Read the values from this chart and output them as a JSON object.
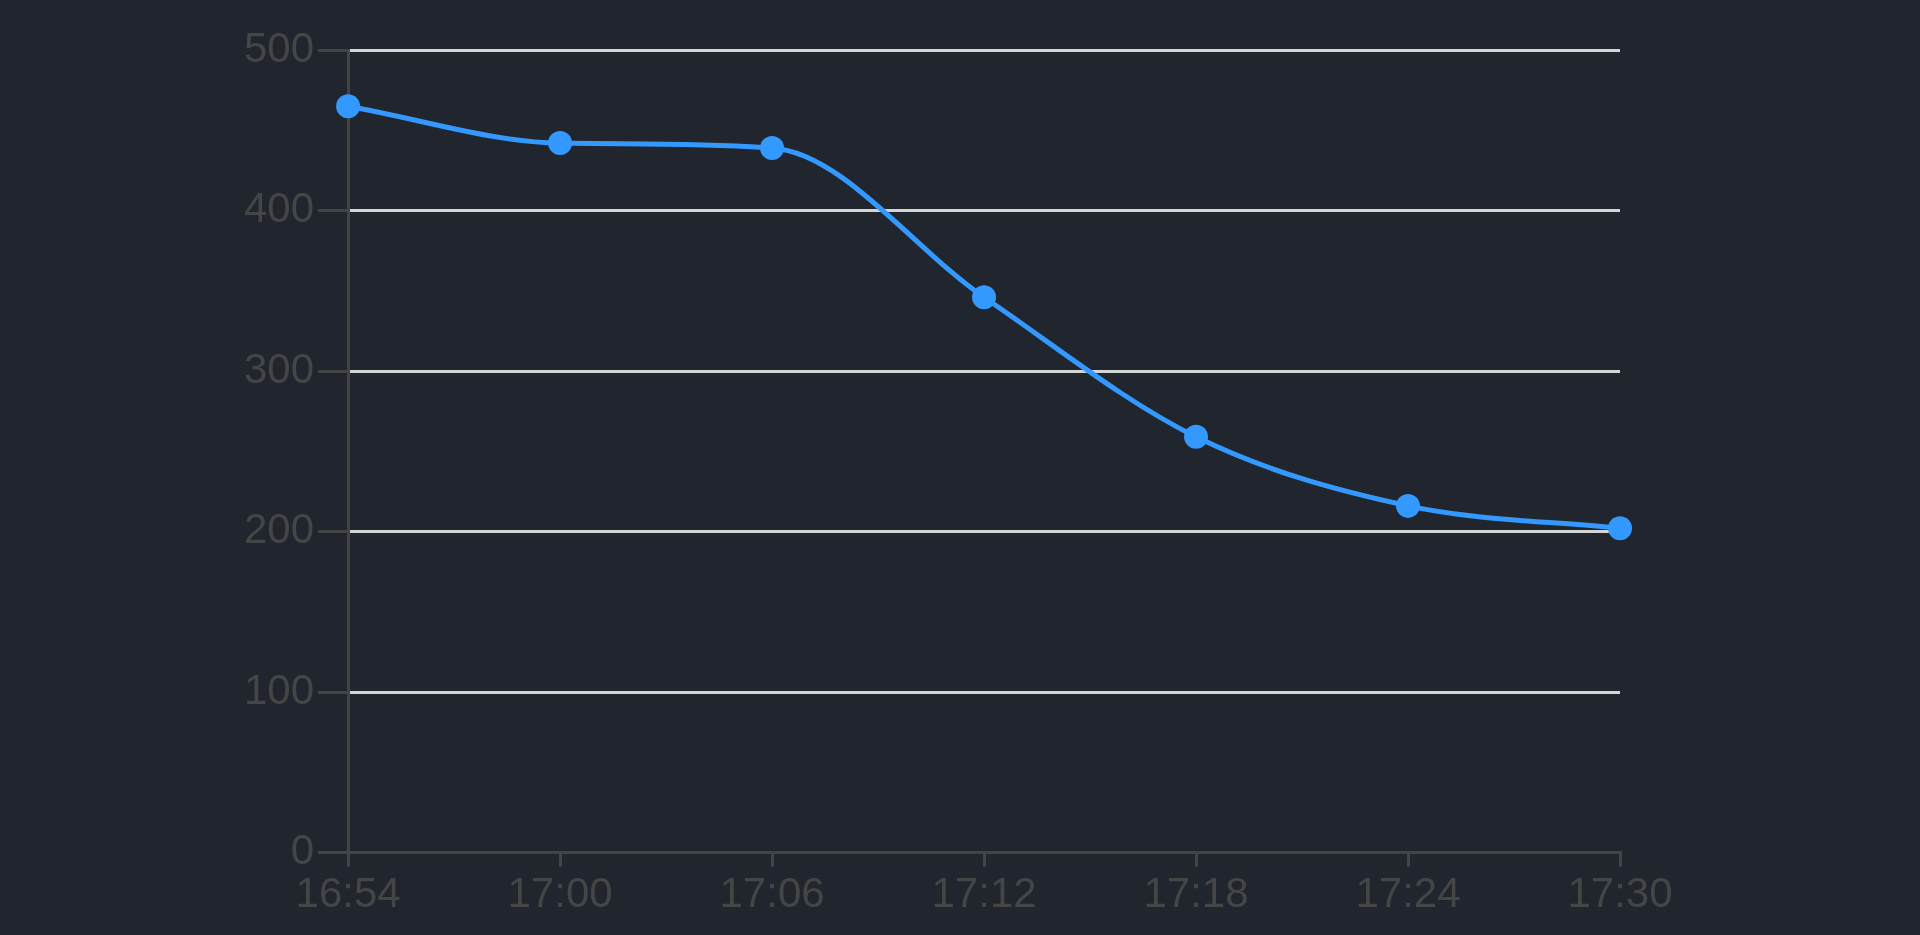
{
  "chart_data": {
    "type": "line",
    "categories": [
      "16:54",
      "17:00",
      "17:06",
      "17:12",
      "17:18",
      "17:24",
      "17:30"
    ],
    "series": [
      {
        "color": "#3399ff",
        "values": [
          465,
          442,
          439,
          346,
          259,
          216,
          202
        ]
      }
    ],
    "ylim": [
      0,
      500
    ],
    "yticks": [
      0,
      100,
      200,
      300,
      400,
      500
    ],
    "grid": "y",
    "legend": false,
    "marker": "circle",
    "line_style": "solid"
  }
}
